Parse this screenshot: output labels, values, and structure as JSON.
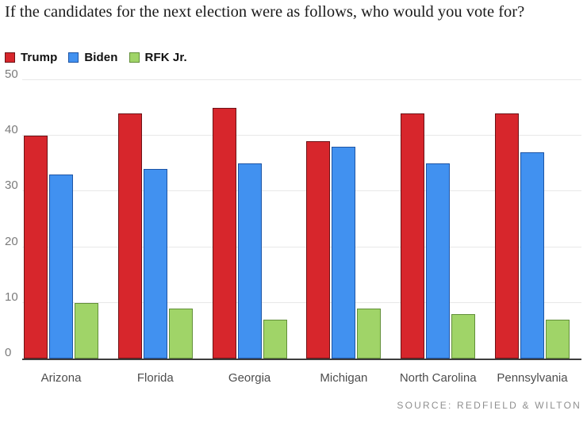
{
  "title": "If the candidates for the next election were as follows, who would you vote for?",
  "source": "SOURCE: REDFIELD & WILTON",
  "colors": {
    "background": "#ffffff",
    "gridline": "#e8e8e8",
    "axis_line": "#3d3d3d",
    "ytick_label": "#7b7b7b",
    "xtick_label": "#4d4d4d",
    "title_text": "#1a1a1a",
    "source_text": "#8f8f8f"
  },
  "chart_data": {
    "type": "bar",
    "title": "If the candidates for the next election were as follows, who would you vote for?",
    "categories": [
      "Arizona",
      "Florida",
      "Georgia",
      "Michigan",
      "North Carolina",
      "Pennsylvania"
    ],
    "series": [
      {
        "name": "Trump",
        "color": "#d7262c",
        "border_color": "#6e1216",
        "values": [
          40,
          44,
          45,
          39,
          44,
          44
        ]
      },
      {
        "name": "Biden",
        "color": "#4191f0",
        "border_color": "#1e55a5",
        "values": [
          33,
          34,
          35,
          38,
          35,
          37
        ]
      },
      {
        "name": "RFK Jr.",
        "color": "#a0d468",
        "border_color": "#628f39",
        "values": [
          10,
          9,
          7,
          9,
          8,
          7
        ]
      }
    ],
    "xlabel": "",
    "ylabel": "",
    "ylim": [
      0,
      50
    ],
    "yticks": [
      0,
      10,
      20,
      30,
      40,
      50
    ],
    "grid": true,
    "legend_position": "top-left",
    "source": "SOURCE: REDFIELD & WILTON"
  }
}
